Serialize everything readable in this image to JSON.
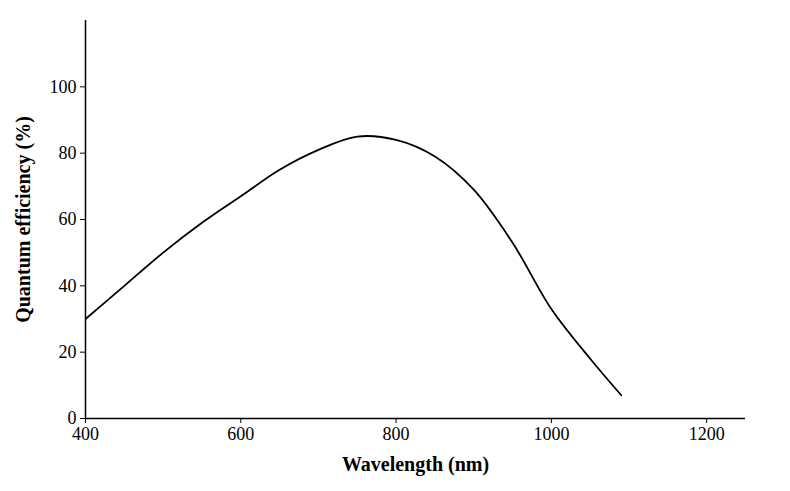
{
  "chart_data": {
    "type": "line",
    "x_label": "Wavelength (nm)",
    "y_label": "Quantum efficiency (%)",
    "x": [
      400,
      450,
      500,
      550,
      600,
      650,
      700,
      750,
      800,
      850,
      900,
      950,
      1000,
      1050,
      1090
    ],
    "values": [
      30,
      40,
      50,
      59,
      67,
      75,
      81,
      85,
      84,
      79,
      69,
      53,
      33,
      18,
      7
    ],
    "color": "#000000",
    "xlim": [
      400,
      1250
    ],
    "ylim": [
      0,
      120
    ],
    "xticks": [
      400,
      600,
      800,
      1000,
      1200
    ],
    "yticks": [
      0,
      20,
      40,
      60,
      80,
      100
    ],
    "grid": false
  }
}
